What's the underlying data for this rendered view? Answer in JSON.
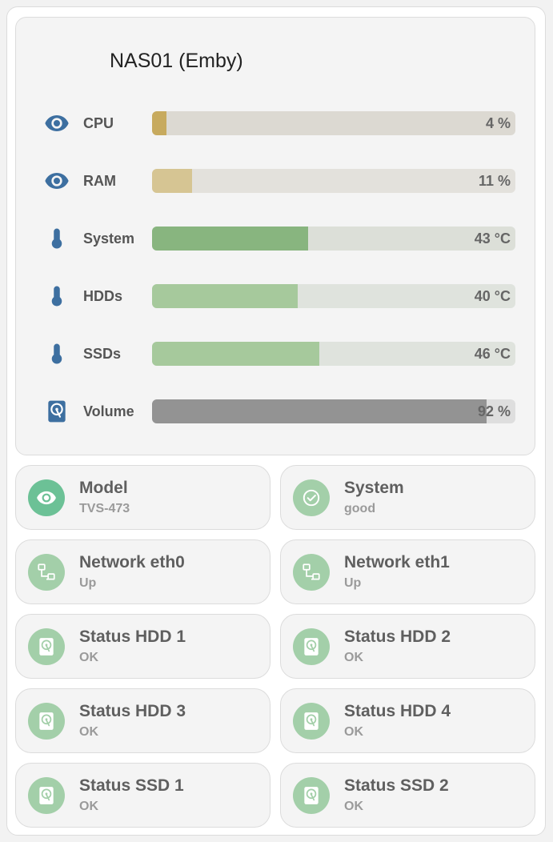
{
  "card": {
    "title": "NAS01 (Emby)"
  },
  "bars": [
    {
      "icon": "eye-icon",
      "label": "CPU",
      "value": "4 %",
      "fill_fraction": 0.04,
      "fill_color": "#c7aa5e",
      "track_color": "#dcd9d2"
    },
    {
      "icon": "eye-icon",
      "label": "RAM",
      "value": "11 %",
      "fill_fraction": 0.11,
      "fill_color": "#d6c593",
      "track_color": "#e3e1dc"
    },
    {
      "icon": "thermometer-icon",
      "label": "System",
      "value": "43 °C",
      "fill_fraction": 0.43,
      "fill_color": "#88b57f",
      "track_color": "#dcdfd8"
    },
    {
      "icon": "thermometer-icon",
      "label": "HDDs",
      "value": "40 °C",
      "fill_fraction": 0.4,
      "fill_color": "#a6c99c",
      "track_color": "#dfe3dd"
    },
    {
      "icon": "thermometer-icon",
      "label": "SSDs",
      "value": "46 °C",
      "fill_fraction": 0.46,
      "fill_color": "#a6c99c",
      "track_color": "#dfe3dd"
    },
    {
      "icon": "harddisk-icon",
      "label": "Volume",
      "value": "92 %",
      "fill_fraction": 0.92,
      "fill_color": "#939393",
      "track_color": "#dedede"
    }
  ],
  "tiles": [
    {
      "name": "Model",
      "state": "TVS-473",
      "icon": "eye-icon",
      "icon_bg": "#6cc196"
    },
    {
      "name": "System",
      "state": "good",
      "icon": "check-circle-icon",
      "icon_bg": "#a3cfa9"
    },
    {
      "name": "Network eth0",
      "state": "Up",
      "icon": "network-icon",
      "icon_bg": "#a3cfa9"
    },
    {
      "name": "Network eth1",
      "state": "Up",
      "icon": "network-icon",
      "icon_bg": "#a3cfa9"
    },
    {
      "name": "Status HDD 1",
      "state": "OK",
      "icon": "harddisk-icon",
      "icon_bg": "#a3cfa9"
    },
    {
      "name": "Status HDD 2",
      "state": "OK",
      "icon": "harddisk-icon",
      "icon_bg": "#a3cfa9"
    },
    {
      "name": "Status HDD 3",
      "state": "OK",
      "icon": "harddisk-icon",
      "icon_bg": "#a3cfa9"
    },
    {
      "name": "Status HDD 4",
      "state": "OK",
      "icon": "harddisk-icon",
      "icon_bg": "#a3cfa9"
    },
    {
      "name": "Status SSD 1",
      "state": "OK",
      "icon": "harddisk-icon",
      "icon_bg": "#a3cfa9"
    },
    {
      "name": "Status SSD 2",
      "state": "OK",
      "icon": "harddisk-icon",
      "icon_bg": "#a3cfa9"
    }
  ],
  "colors": {
    "icon_blue": "#3d6fa0",
    "icon_white": "#ffffff"
  }
}
